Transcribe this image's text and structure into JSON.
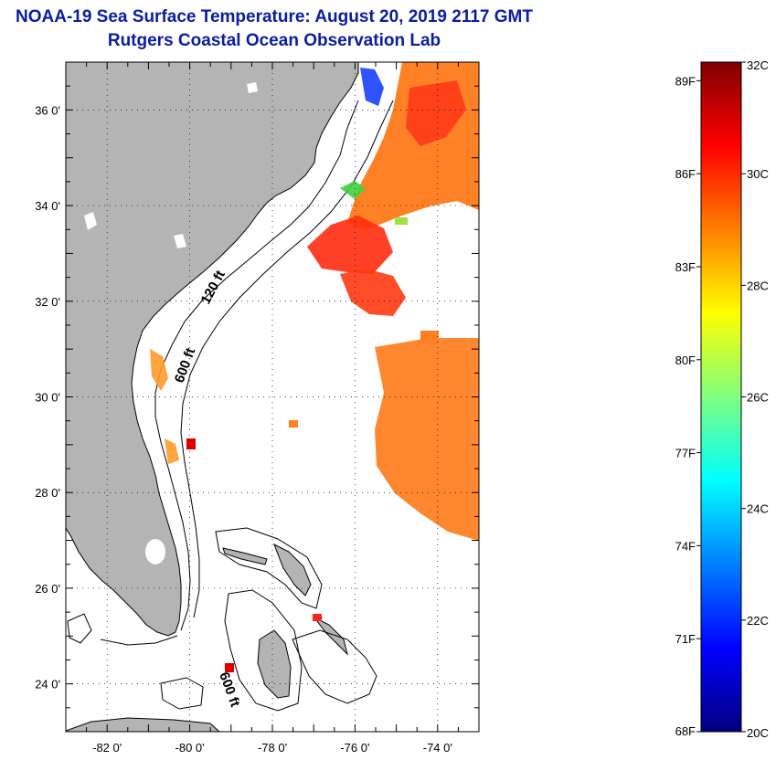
{
  "header": {
    "title_line1": "NOAA-19 Sea Surface Temperature:  August 20, 2019 2117 GMT",
    "title_line2": "Rutgers Coastal Ocean Observation Lab"
  },
  "map": {
    "lat_range": [
      23,
      37
    ],
    "lon_range": [
      -83,
      -73
    ],
    "lat_labels": [
      "36 0'",
      "34 0'",
      "32 0'",
      "30 0'",
      "28 0'",
      "26 0'",
      "24 0'"
    ],
    "lat_values": [
      36,
      34,
      32,
      30,
      28,
      26,
      24
    ],
    "lon_labels": [
      "-82 0'",
      "-80 0'",
      "-78 0'",
      "-76 0'",
      "-74 0'"
    ],
    "lon_values": [
      -82,
      -80,
      -78,
      -76,
      -74
    ],
    "land_color": "#b4b4b4",
    "grid": "dotted",
    "contour_labels": [
      "120 ft",
      "600 ft",
      "600 ft"
    ]
  },
  "legend": {
    "celsius_range": [
      20,
      32
    ],
    "celsius_labels": [
      "32C",
      "30C",
      "28C",
      "26C",
      "24C",
      "22C",
      "20C"
    ],
    "celsius_values": [
      32,
      30,
      28,
      26,
      24,
      22,
      20
    ],
    "fahrenheit_labels": [
      "89F",
      "86F",
      "83F",
      "80F",
      "77F",
      "74F",
      "71F",
      "68F"
    ],
    "fahrenheit_values": [
      89,
      86,
      83,
      80,
      77,
      74,
      71,
      68
    ],
    "colors": [
      "#00007f",
      "#0000ff",
      "#007fff",
      "#00ffff",
      "#7fff7f",
      "#ffff00",
      "#ff7f00",
      "#ff0000",
      "#7f0000"
    ]
  }
}
